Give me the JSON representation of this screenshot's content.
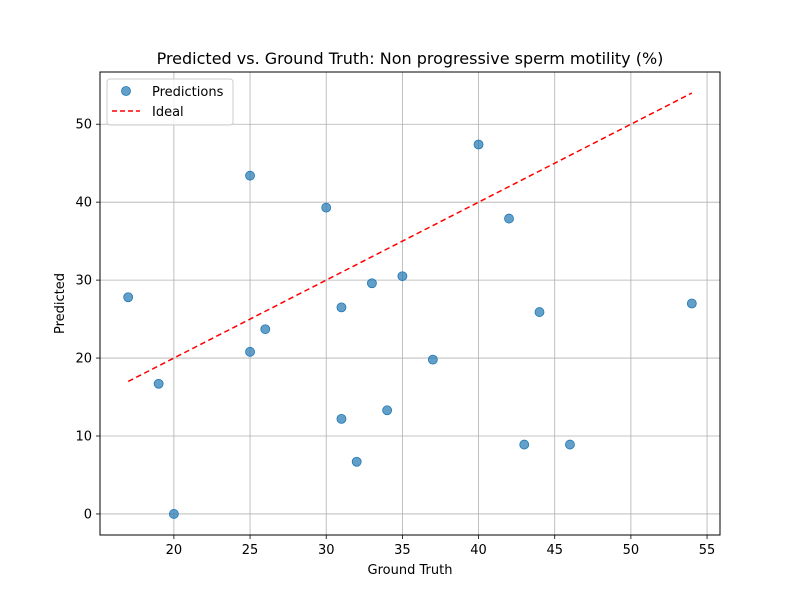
{
  "chart_data": {
    "type": "scatter",
    "title": "Predicted vs. Ground Truth: Non progressive sperm motility (%)",
    "xlabel": "Ground Truth",
    "ylabel": "Predicted",
    "xlim": [
      15.15,
      55.85
    ],
    "ylim": [
      -2.7,
      56.7
    ],
    "xticks": [
      20,
      25,
      30,
      35,
      40,
      45,
      50,
      55
    ],
    "yticks": [
      0,
      10,
      20,
      30,
      40,
      50
    ],
    "grid": true,
    "legend_position": "top-left",
    "series": [
      {
        "name": "Predictions",
        "kind": "scatter",
        "color": "#1f77b4",
        "points": [
          {
            "x": 17,
            "y": 27.8
          },
          {
            "x": 19,
            "y": 16.7
          },
          {
            "x": 20,
            "y": 0.0
          },
          {
            "x": 25,
            "y": 43.4
          },
          {
            "x": 25,
            "y": 20.8
          },
          {
            "x": 26,
            "y": 23.7
          },
          {
            "x": 30,
            "y": 39.3
          },
          {
            "x": 31,
            "y": 26.5
          },
          {
            "x": 31,
            "y": 12.2
          },
          {
            "x": 32,
            "y": 6.7
          },
          {
            "x": 33,
            "y": 29.6
          },
          {
            "x": 34,
            "y": 13.3
          },
          {
            "x": 35,
            "y": 30.5
          },
          {
            "x": 37,
            "y": 19.8
          },
          {
            "x": 40,
            "y": 47.4
          },
          {
            "x": 42,
            "y": 37.9
          },
          {
            "x": 43,
            "y": 8.9
          },
          {
            "x": 44,
            "y": 25.9
          },
          {
            "x": 46,
            "y": 8.9
          },
          {
            "x": 54,
            "y": 27.0
          }
        ]
      },
      {
        "name": "Ideal",
        "kind": "line",
        "style": "dashed",
        "color": "#ff0000",
        "points": [
          {
            "x": 17,
            "y": 17
          },
          {
            "x": 54,
            "y": 54
          }
        ]
      }
    ]
  }
}
